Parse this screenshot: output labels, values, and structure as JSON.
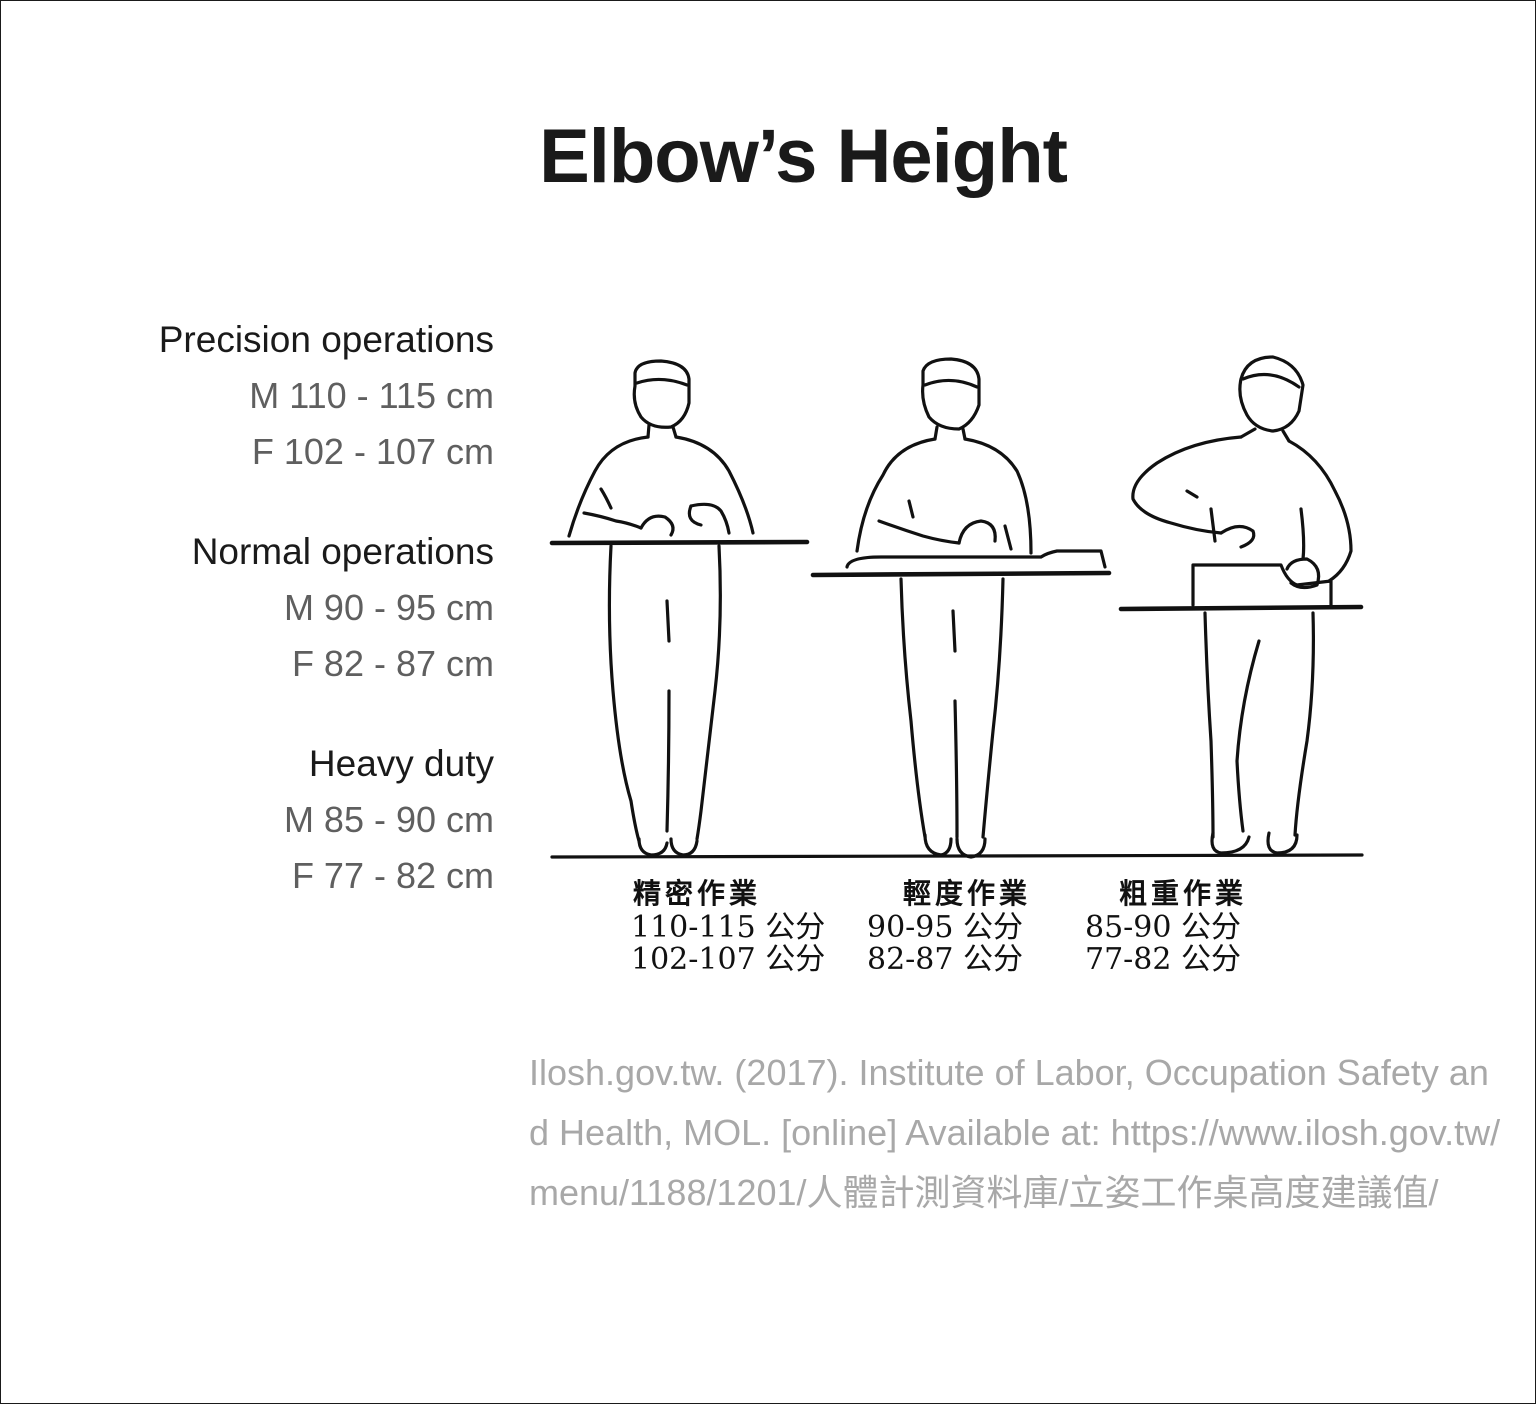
{
  "title": "Elbow’s Height",
  "operations": [
    {
      "heading": "Precision operations",
      "male": "M 110 - 115 cm",
      "female": "F 102 - 107 cm"
    },
    {
      "heading": "Normal operations",
      "male": "M 90 - 95 cm",
      "female": "F 82 - 87 cm"
    },
    {
      "heading": "Heavy duty",
      "male": "M 85 - 90 cm",
      "female": "F 77 - 82 cm"
    }
  ],
  "illustration": {
    "captions": [
      {
        "label": "精密作業",
        "male": "110-115 公分",
        "female": "102-107 公分"
      },
      {
        "label": "輕度作業",
        "male": "90-95 公分",
        "female": "82-87 公分"
      },
      {
        "label": "粗重作業",
        "male": "85-90 公分",
        "female": "77-82 公分"
      }
    ]
  },
  "citation": "Ilosh.gov.tw. (2017). Institute of Labor, Occupation Safety and Health, MOL. [online] Available at: https://www.ilosh.gov.tw/menu/1188/1201/人體計測資料庫/立姿工作桌高度建議值/"
}
